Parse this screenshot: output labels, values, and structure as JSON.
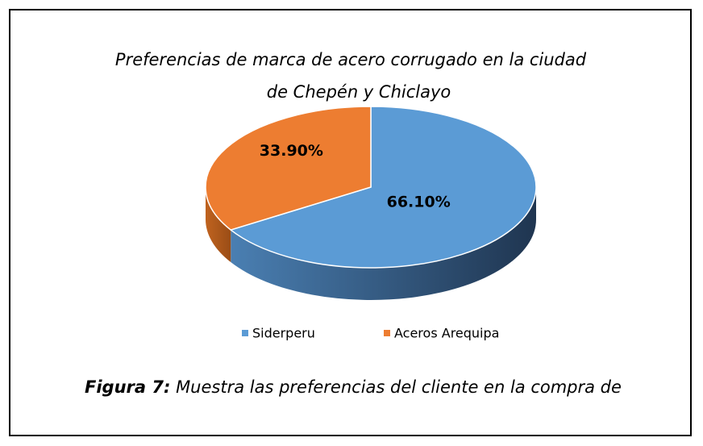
{
  "chart_data": {
    "type": "pie",
    "title_lines": [
      "Preferencias de marca de acero corrugado en la ciudad",
      "de Chepén y Chiclayo"
    ],
    "categories": [
      "Siderperu",
      "Aceros Arequipa"
    ],
    "values": [
      66.1,
      33.9
    ],
    "value_labels": [
      "66.10%",
      "33.90%"
    ],
    "colors": [
      "#5b9bd5",
      "#ed7d31"
    ],
    "legend": "bottom"
  },
  "caption": {
    "label": "Figura 7:",
    "text": "Muestra las preferencias del cliente en la compra de"
  }
}
